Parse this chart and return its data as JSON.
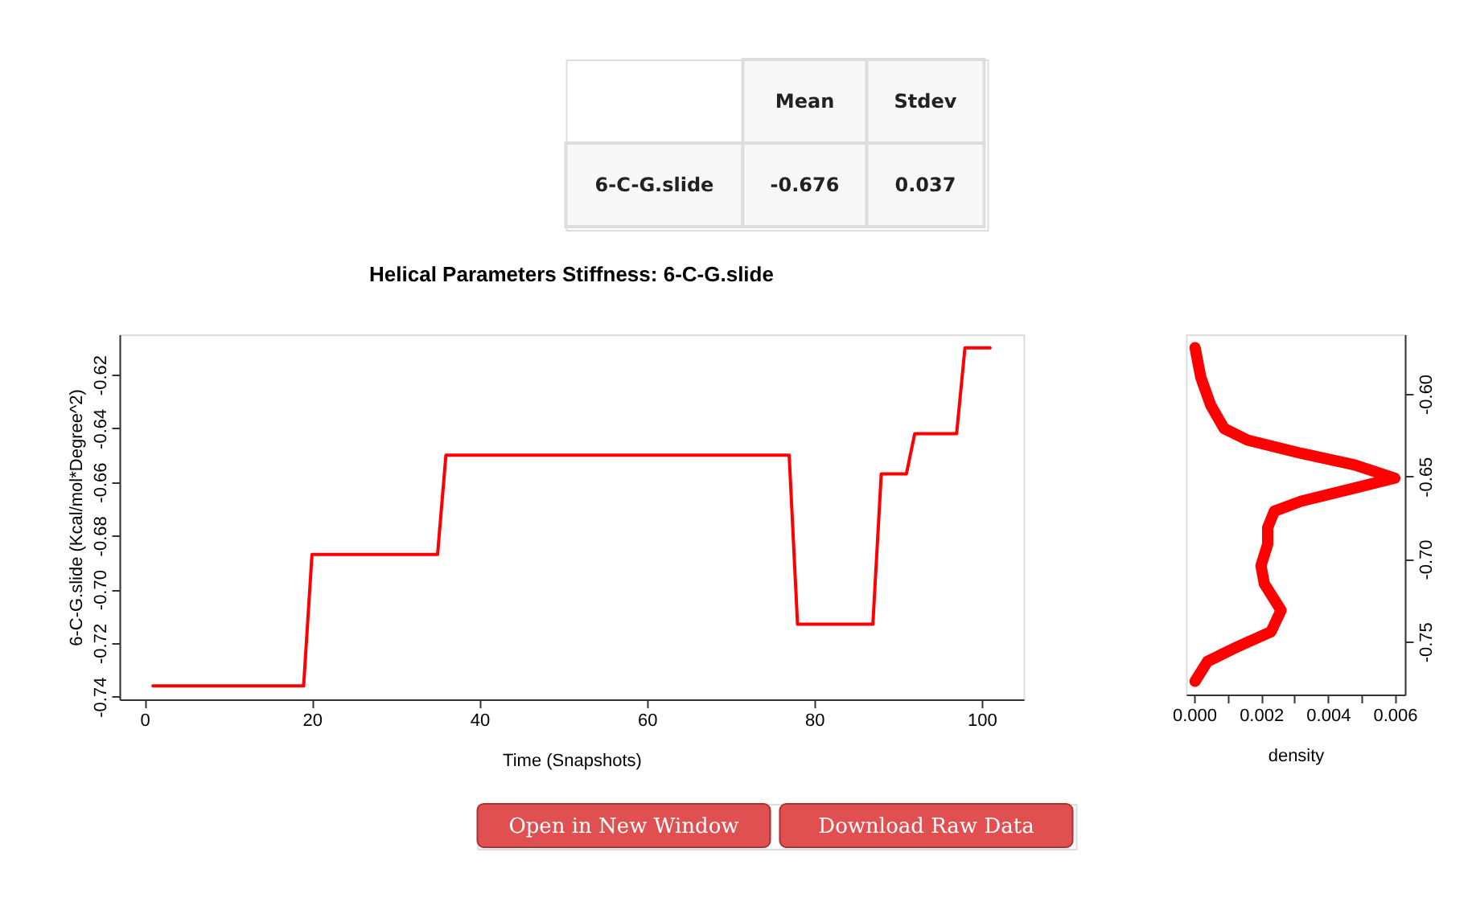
{
  "chart_data": [
    {
      "type": "other",
      "annotations": [
        "Mean",
        "Stdev",
        "6-C-G.slide",
        "-0.676",
        "0.037"
      ]
    },
    {
      "type": "line",
      "title": "Helical Parameters Stiffness: 6-C-G.slide",
      "xlabel": "Time (Snapshots)",
      "ylabel": "6-C-G.slide (Kcal/mol*Degree^2)",
      "x": [
        1,
        19,
        20,
        35,
        36,
        77,
        78,
        87,
        88,
        91,
        92,
        97,
        98,
        101
      ],
      "series": [
        {
          "color": "#ff0000",
          "values": [
            -0.736,
            -0.736,
            -0.687,
            -0.687,
            -0.65,
            -0.65,
            -0.713,
            -0.713,
            -0.657,
            -0.657,
            -0.642,
            -0.642,
            -0.61,
            -0.61
          ]
        }
      ],
      "xlim": [
        -3,
        105
      ],
      "ylim": [
        -0.741,
        -0.605
      ],
      "xticks": [
        0,
        20,
        40,
        60,
        80,
        100
      ],
      "yticks": [
        {
          "value": -0.74,
          "label": "-0.74"
        },
        {
          "value": -0.72,
          "label": "-0.72"
        },
        {
          "value": -0.7,
          "label": "-0.70"
        },
        {
          "value": -0.68,
          "label": "-0.68"
        },
        {
          "value": -0.66,
          "label": "-0.66"
        },
        {
          "value": -0.64,
          "label": "-0.64"
        },
        {
          "value": -0.62,
          "label": "-0.62"
        }
      ],
      "grid": false
    },
    {
      "type": "line",
      "xlabel": "density",
      "x": [
        3e-05,
        0.0002,
        0.0005,
        0.0009,
        0.0016,
        0.0032,
        0.0048,
        0.006,
        0.0048,
        0.0032,
        0.0024,
        0.0022,
        0.0022,
        0.002,
        0.0021,
        0.0026,
        0.0023,
        0.0012,
        0.0004,
        3e-05
      ],
      "series": [
        {
          "color": "#ff0000",
          "values": [
            -0.572,
            -0.59,
            -0.607,
            -0.621,
            -0.628,
            -0.636,
            -0.643,
            -0.651,
            -0.657,
            -0.665,
            -0.671,
            -0.681,
            -0.691,
            -0.704,
            -0.715,
            -0.731,
            -0.744,
            -0.754,
            -0.762,
            -0.774
          ]
        }
      ],
      "xlim": [
        -0.00024,
        0.0063
      ],
      "ylim": [
        -0.782,
        -0.564
      ],
      "xticks": [
        {
          "value": 0.0,
          "label": "0.000"
        },
        {
          "value": 0.001,
          "label": null
        },
        {
          "value": 0.002,
          "label": "0.002"
        },
        {
          "value": 0.003,
          "label": null
        },
        {
          "value": 0.004,
          "label": "0.004"
        },
        {
          "value": 0.005,
          "label": null
        },
        {
          "value": 0.006,
          "label": "0.006"
        }
      ],
      "yticks": [
        {
          "value": -0.6,
          "label": "-0.60"
        },
        {
          "value": -0.65,
          "label": "-0.65"
        },
        {
          "value": -0.7,
          "label": "-0.70"
        },
        {
          "value": -0.75,
          "label": "-0.75"
        }
      ],
      "grid": false
    },
    {
      "type": "other",
      "annotations": [
        "Open in New Window",
        "Download Raw Data"
      ]
    }
  ]
}
